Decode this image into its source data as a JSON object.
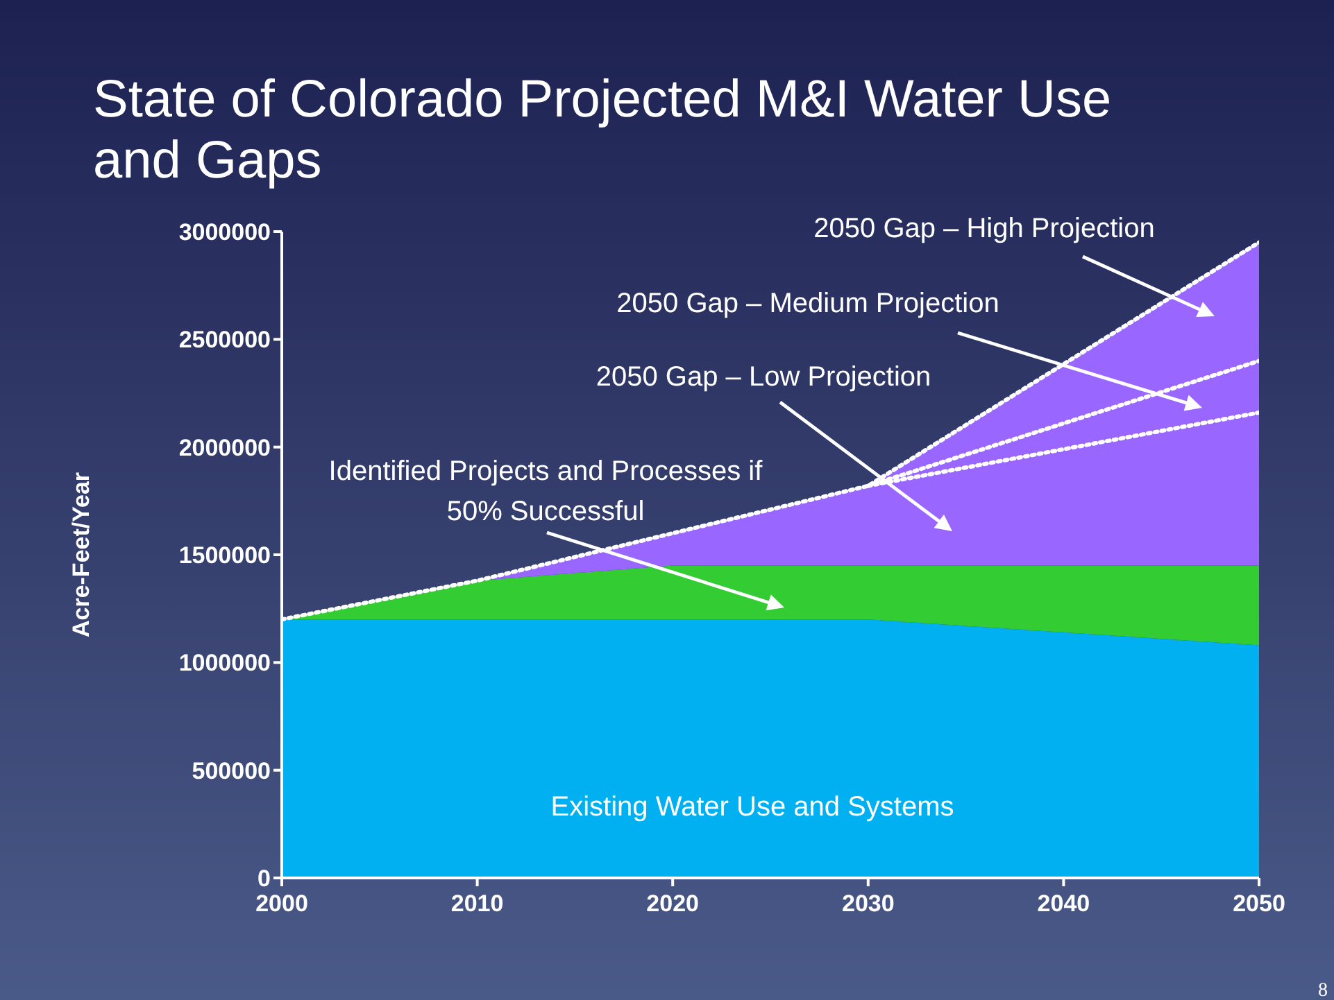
{
  "chart_data": {
    "type": "area",
    "title": "State of Colorado Projected M&I Water Use and Gaps",
    "ylabel": "Acre-Feet/Year",
    "x": [
      2000,
      2010,
      2020,
      2030,
      2050
    ],
    "stacked": true,
    "series": [
      {
        "color": "#00b0f0",
        "values": [
          1200000,
          1200000,
          1200000,
          1200000,
          1080000
        ]
      },
      {
        "color": "#33cc33",
        "values": [
          0,
          180000,
          250000,
          250000,
          370000
        ]
      },
      {
        "color": "#9966ff",
        "line_style": "dotted",
        "values": [
          0,
          0,
          150000,
          370000,
          1500000
        ]
      },
      {
        "type": "line",
        "color": "#ffffff",
        "line_style": "dotted",
        "values": [
          null,
          null,
          null,
          1820000,
          2400000
        ]
      },
      {
        "type": "line",
        "color": "#ffffff",
        "line_style": "dotted",
        "values": [
          null,
          null,
          null,
          1820000,
          2160000
        ]
      }
    ],
    "xlim": [
      2000,
      2050
    ],
    "xticks": [
      2000,
      2010,
      2020,
      2030,
      2040,
      2050
    ],
    "ylim": [
      0,
      3000000
    ],
    "yticks": [
      0,
      500000,
      1000000,
      1500000,
      2000000,
      2500000,
      3000000
    ],
    "grid": false,
    "legend": false,
    "marker": "none",
    "annotations": [
      "2050 Gap – High Projection",
      "2050 Gap – Medium Projection",
      "2050 Gap – Low Projection",
      "Identified Projects and Processes if 50% Successful",
      "Existing Water Use and Systems",
      "8"
    ]
  }
}
